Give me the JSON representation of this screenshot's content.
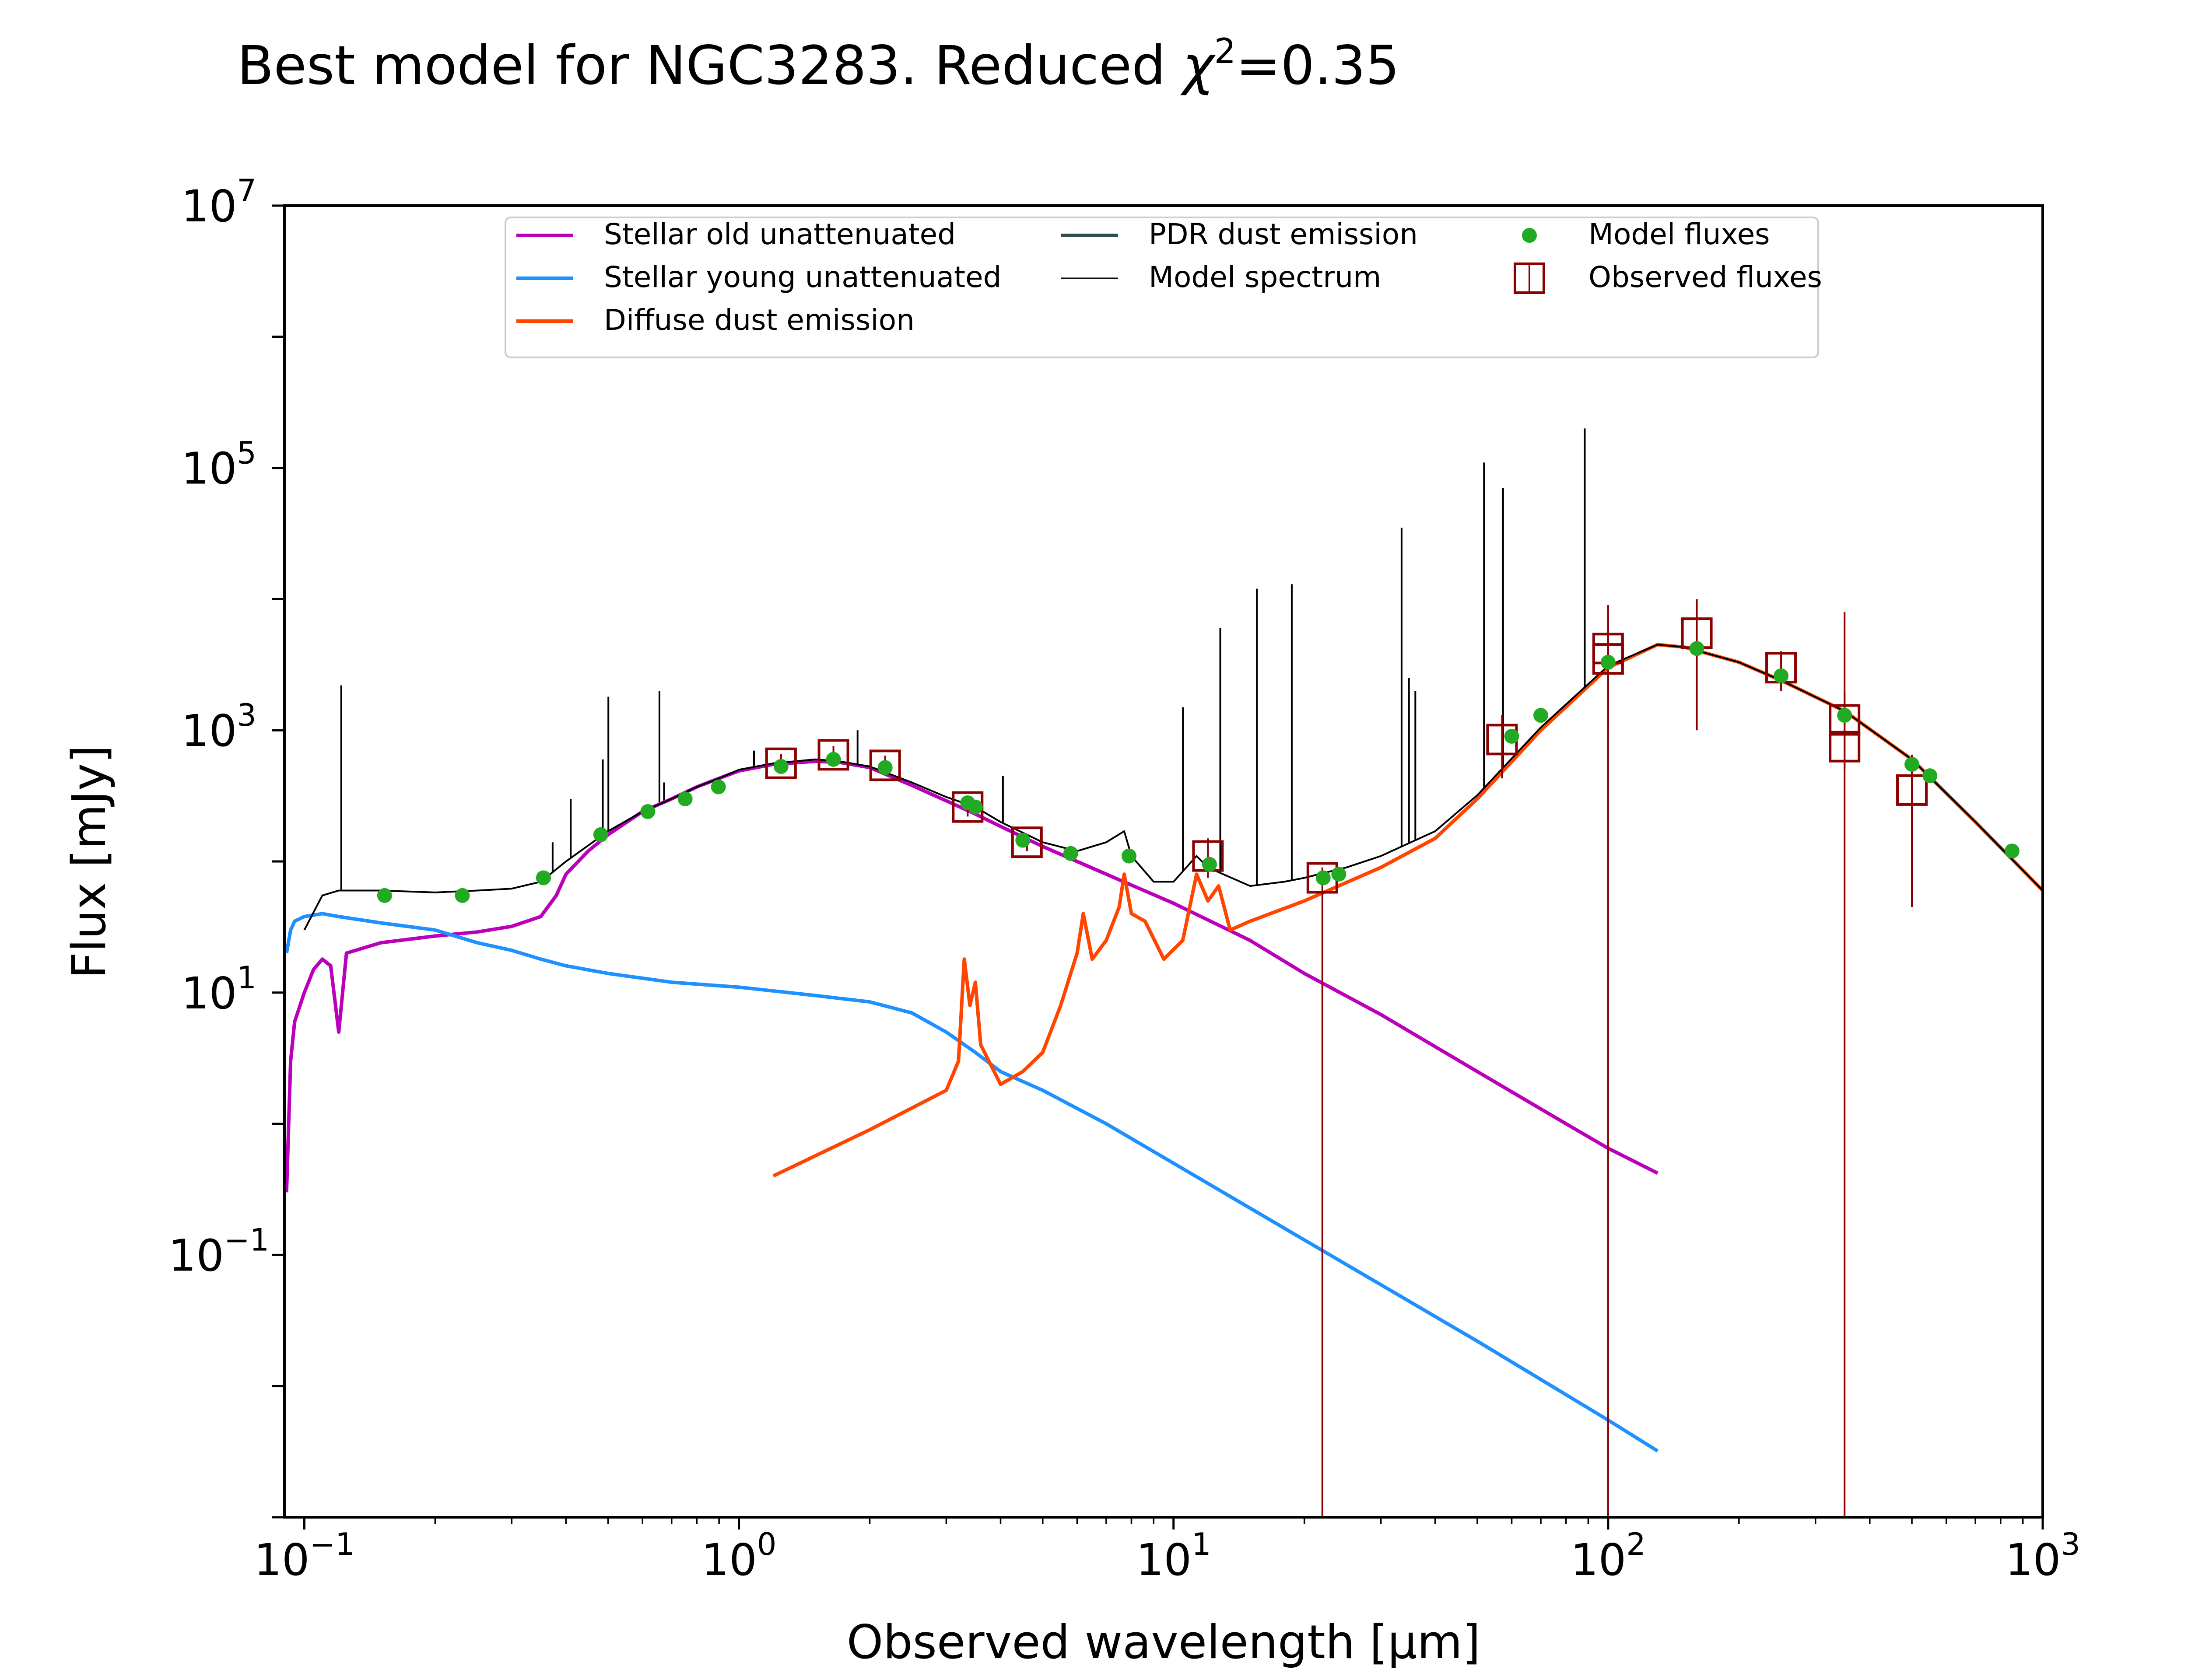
{
  "title": {
    "prefix": "Best model for NGC3283. Reduced ",
    "chi": "χ",
    "sup": "2",
    "suffix": "=0.35"
  },
  "chart_data": {
    "type": "line",
    "title": "Best model for NGC3283. Reduced χ²=0.35",
    "xlabel": "Observed wavelength [μm]",
    "ylabel": "Flux [mJy]",
    "xscale": "log",
    "yscale": "log",
    "xlim": [
      0.09,
      1000
    ],
    "ylim": [
      0.001,
      10000000
    ],
    "x_ticks": [
      {
        "base": "10",
        "exp": "−1",
        "value": 0.1
      },
      {
        "base": "10",
        "exp": "0",
        "value": 1
      },
      {
        "base": "10",
        "exp": "1",
        "value": 10
      },
      {
        "base": "10",
        "exp": "2",
        "value": 100
      },
      {
        "base": "10",
        "exp": "3",
        "value": 1000
      }
    ],
    "y_ticks": [
      {
        "base": "10",
        "exp": "−1",
        "value": 0.1
      },
      {
        "base": "10",
        "exp": "1",
        "value": 10
      },
      {
        "base": "10",
        "exp": "3",
        "value": 1000
      },
      {
        "base": "10",
        "exp": "5",
        "value": 100000
      },
      {
        "base": "10",
        "exp": "7",
        "value": 10000000
      }
    ],
    "legend": {
      "placement": "upper-center",
      "entries": [
        {
          "label": "Stellar old unattenuated",
          "kind": "line",
          "color": "#bb00bb"
        },
        {
          "label": "Stellar young unattenuated",
          "kind": "line",
          "color": "#1e90ff"
        },
        {
          "label": "Diffuse dust emission",
          "kind": "line",
          "color": "#ff4500"
        },
        {
          "label": "PDR dust emission",
          "kind": "line",
          "color": "#2f4f4f"
        },
        {
          "label": "Model spectrum",
          "kind": "thinline",
          "color": "#000000"
        },
        {
          "label": "Model fluxes",
          "kind": "dot",
          "color": "#22aa22"
        },
        {
          "label": "Observed fluxes",
          "kind": "square",
          "color": "#8b0000"
        }
      ]
    },
    "series": [
      {
        "name": "Stellar old unattenuated",
        "color": "#bb00bb",
        "points": [
          [
            0.091,
            0.3
          ],
          [
            0.093,
            3
          ],
          [
            0.095,
            6
          ],
          [
            0.1,
            10
          ],
          [
            0.105,
            15
          ],
          [
            0.11,
            18
          ],
          [
            0.115,
            16
          ],
          [
            0.12,
            5
          ],
          [
            0.125,
            20
          ],
          [
            0.15,
            24
          ],
          [
            0.2,
            27
          ],
          [
            0.25,
            29
          ],
          [
            0.3,
            32
          ],
          [
            0.35,
            38
          ],
          [
            0.38,
            55
          ],
          [
            0.4,
            80
          ],
          [
            0.45,
            120
          ],
          [
            0.5,
            160
          ],
          [
            0.6,
            240
          ],
          [
            0.7,
            300
          ],
          [
            0.8,
            370
          ],
          [
            0.9,
            430
          ],
          [
            1.0,
            490
          ],
          [
            1.2,
            550
          ],
          [
            1.5,
            580
          ],
          [
            1.7,
            570
          ],
          [
            2.0,
            520
          ],
          [
            2.5,
            380
          ],
          [
            3.0,
            290
          ],
          [
            3.5,
            230
          ],
          [
            4.0,
            185
          ],
          [
            5.0,
            130
          ],
          [
            7.0,
            80
          ],
          [
            10.0,
            48
          ],
          [
            15.0,
            25
          ],
          [
            20.0,
            14
          ],
          [
            30.0,
            6.8
          ],
          [
            50.0,
            2.5
          ],
          [
            80.0,
            1.0
          ],
          [
            100.0,
            0.65
          ],
          [
            130.0,
            0.42
          ]
        ]
      },
      {
        "name": "Stellar young unattenuated",
        "color": "#1e90ff",
        "points": [
          [
            0.091,
            20
          ],
          [
            0.093,
            30
          ],
          [
            0.095,
            35
          ],
          [
            0.1,
            38
          ],
          [
            0.11,
            40
          ],
          [
            0.12,
            38
          ],
          [
            0.15,
            34
          ],
          [
            0.2,
            30
          ],
          [
            0.25,
            24
          ],
          [
            0.3,
            21
          ],
          [
            0.35,
            18
          ],
          [
            0.4,
            16
          ],
          [
            0.5,
            14
          ],
          [
            0.7,
            12
          ],
          [
            1.0,
            11
          ],
          [
            1.5,
            9.5
          ],
          [
            2.0,
            8.5
          ],
          [
            2.5,
            7
          ],
          [
            3.0,
            5
          ],
          [
            3.5,
            3.5
          ],
          [
            4.0,
            2.5
          ],
          [
            5.0,
            1.8
          ],
          [
            7.0,
            1.0
          ],
          [
            10.0,
            0.5
          ],
          [
            20.0,
            0.13
          ],
          [
            50.0,
            0.022
          ],
          [
            100.0,
            0.0055
          ],
          [
            130.0,
            0.0032
          ]
        ]
      },
      {
        "name": "Diffuse dust emission",
        "color": "#ff4500",
        "points": [
          [
            1.2,
            0.4
          ],
          [
            2.0,
            0.9
          ],
          [
            3.0,
            1.8
          ],
          [
            3.2,
            3
          ],
          [
            3.3,
            18
          ],
          [
            3.4,
            8
          ],
          [
            3.5,
            12
          ],
          [
            3.6,
            4
          ],
          [
            4.0,
            2.0
          ],
          [
            4.5,
            2.5
          ],
          [
            5.0,
            3.5
          ],
          [
            5.5,
            8
          ],
          [
            6.0,
            20
          ],
          [
            6.2,
            40
          ],
          [
            6.5,
            18
          ],
          [
            7.0,
            25
          ],
          [
            7.5,
            45
          ],
          [
            7.7,
            80
          ],
          [
            8.0,
            40
          ],
          [
            8.6,
            35
          ],
          [
            9.5,
            18
          ],
          [
            10.5,
            25
          ],
          [
            11.3,
            80
          ],
          [
            12.0,
            50
          ],
          [
            12.7,
            65
          ],
          [
            13.5,
            30
          ],
          [
            15.0,
            35
          ],
          [
            20.0,
            50
          ],
          [
            30.0,
            90
          ],
          [
            40.0,
            150
          ],
          [
            50.0,
            300
          ],
          [
            70.0,
            1000
          ],
          [
            100.0,
            3000
          ],
          [
            130.0,
            4500
          ],
          [
            150.0,
            4300
          ],
          [
            200.0,
            3300
          ],
          [
            250.0,
            2400
          ],
          [
            350.0,
            1400
          ],
          [
            500.0,
            600
          ],
          [
            700.0,
            200
          ],
          [
            1000.0,
            60
          ]
        ]
      },
      {
        "name": "Model spectrum",
        "color": "#000000",
        "points": [
          [
            0.1,
            30
          ],
          [
            0.11,
            55
          ],
          [
            0.12,
            60
          ],
          [
            0.15,
            60
          ],
          [
            0.2,
            58
          ],
          [
            0.25,
            60
          ],
          [
            0.3,
            62
          ],
          [
            0.35,
            70
          ],
          [
            0.4,
            100
          ],
          [
            0.5,
            170
          ],
          [
            0.6,
            240
          ],
          [
            0.7,
            300
          ],
          [
            0.8,
            370
          ],
          [
            0.9,
            430
          ],
          [
            1.0,
            500
          ],
          [
            1.2,
            560
          ],
          [
            1.5,
            600
          ],
          [
            1.7,
            580
          ],
          [
            2.0,
            530
          ],
          [
            2.5,
            400
          ],
          [
            3.0,
            310
          ],
          [
            3.5,
            260
          ],
          [
            4.0,
            200
          ],
          [
            5.0,
            140
          ],
          [
            6.0,
            120
          ],
          [
            7.0,
            140
          ],
          [
            7.7,
            170
          ],
          [
            8.0,
            110
          ],
          [
            9.0,
            70
          ],
          [
            10.0,
            70
          ],
          [
            11.3,
            110
          ],
          [
            12.0,
            90
          ],
          [
            13.0,
            80
          ],
          [
            15.0,
            65
          ],
          [
            18.0,
            70
          ],
          [
            20.0,
            75
          ],
          [
            25.0,
            90
          ],
          [
            30.0,
            110
          ],
          [
            40.0,
            170
          ],
          [
            50.0,
            320
          ],
          [
            70.0,
            1050
          ],
          [
            100.0,
            3100
          ],
          [
            130.0,
            4500
          ],
          [
            150.0,
            4300
          ],
          [
            200.0,
            3300
          ],
          [
            250.0,
            2400
          ],
          [
            350.0,
            1400
          ],
          [
            500.0,
            600
          ],
          [
            700.0,
            200
          ],
          [
            1000.0,
            60
          ]
        ]
      }
    ],
    "spectral_lines": [
      {
        "x": 0.1216,
        "peak": 2200
      },
      {
        "x": 0.3727,
        "peak": 140
      },
      {
        "x": 0.4102,
        "peak": 300
      },
      {
        "x": 0.4861,
        "peak": 600
      },
      {
        "x": 0.5007,
        "peak": 1800
      },
      {
        "x": 0.6563,
        "peak": 2000
      },
      {
        "x": 0.6724,
        "peak": 400
      },
      {
        "x": 1.083,
        "peak": 700
      },
      {
        "x": 1.875,
        "peak": 1000
      },
      {
        "x": 4.05,
        "peak": 450
      },
      {
        "x": 10.51,
        "peak": 1500
      },
      {
        "x": 12.81,
        "peak": 6000
      },
      {
        "x": 15.55,
        "peak": 12000
      },
      {
        "x": 18.71,
        "peak": 13000
      },
      {
        "x": 33.48,
        "peak": 35000
      },
      {
        "x": 34.81,
        "peak": 2500
      },
      {
        "x": 36.01,
        "peak": 2000
      },
      {
        "x": 51.81,
        "peak": 110000
      },
      {
        "x": 57.32,
        "peak": 70000
      },
      {
        "x": 88.36,
        "peak": 200000
      }
    ],
    "model_fluxes": [
      [
        0.153,
        55
      ],
      [
        0.231,
        55
      ],
      [
        0.355,
        75
      ],
      [
        0.481,
        160
      ],
      [
        0.617,
        240
      ],
      [
        0.752,
        300
      ],
      [
        0.897,
        370
      ],
      [
        1.25,
        530
      ],
      [
        1.65,
        600
      ],
      [
        2.17,
        520
      ],
      [
        3.36,
        280
      ],
      [
        3.5,
        260
      ],
      [
        4.5,
        145
      ],
      [
        5.8,
        115
      ],
      [
        7.9,
        110
      ],
      [
        12.1,
        95
      ],
      [
        22.1,
        75
      ],
      [
        24.0,
        80
      ],
      [
        60.0,
        900
      ],
      [
        70.0,
        1300
      ],
      [
        100.0,
        3300
      ],
      [
        160.0,
        4200
      ],
      [
        250.0,
        2600
      ],
      [
        350.0,
        1300
      ],
      [
        500.0,
        550
      ],
      [
        550.0,
        450
      ],
      [
        850.0,
        120
      ]
    ],
    "observed_fluxes": [
      {
        "x": 1.25,
        "y": 560,
        "yerr_low": 480,
        "yerr_high": 660
      },
      {
        "x": 1.65,
        "y": 650,
        "yerr_low": 560,
        "yerr_high": 760
      },
      {
        "x": 2.17,
        "y": 540,
        "yerr_low": 460,
        "yerr_high": 640
      },
      {
        "x": 3.36,
        "y": 260,
        "yerr_low": 220,
        "yerr_high": 300
      },
      {
        "x": 4.6,
        "y": 140,
        "yerr_low": 120,
        "yerr_high": 160
      },
      {
        "x": 12.0,
        "y": 110,
        "yerr_low": 75,
        "yerr_high": 150
      },
      {
        "x": 22.0,
        "y": 75,
        "yerr_low": 0.001,
        "yerr_high": 90
      },
      {
        "x": 57.0,
        "y": 850,
        "yerr_low": 430,
        "yerr_high": 1300
      },
      {
        "x": 100.0,
        "y": 3500,
        "yerr_low": 0.001,
        "yerr_high": 9000
      },
      {
        "x": 100.0,
        "y": 4200,
        "yerr_low": 1000,
        "yerr_high": 7000
      },
      {
        "x": 160.0,
        "y": 5500,
        "yerr_low": 1000,
        "yerr_high": 10000
      },
      {
        "x": 250.0,
        "y": 3000,
        "yerr_low": 2000,
        "yerr_high": 4000
      },
      {
        "x": 350.0,
        "y": 1200,
        "yerr_low": 500,
        "yerr_high": 2000
      },
      {
        "x": 350.0,
        "y": 750,
        "yerr_low": 0.001,
        "yerr_high": 8000
      },
      {
        "x": 500.0,
        "y": 350,
        "yerr_low": 45,
        "yerr_high": 650
      }
    ]
  }
}
